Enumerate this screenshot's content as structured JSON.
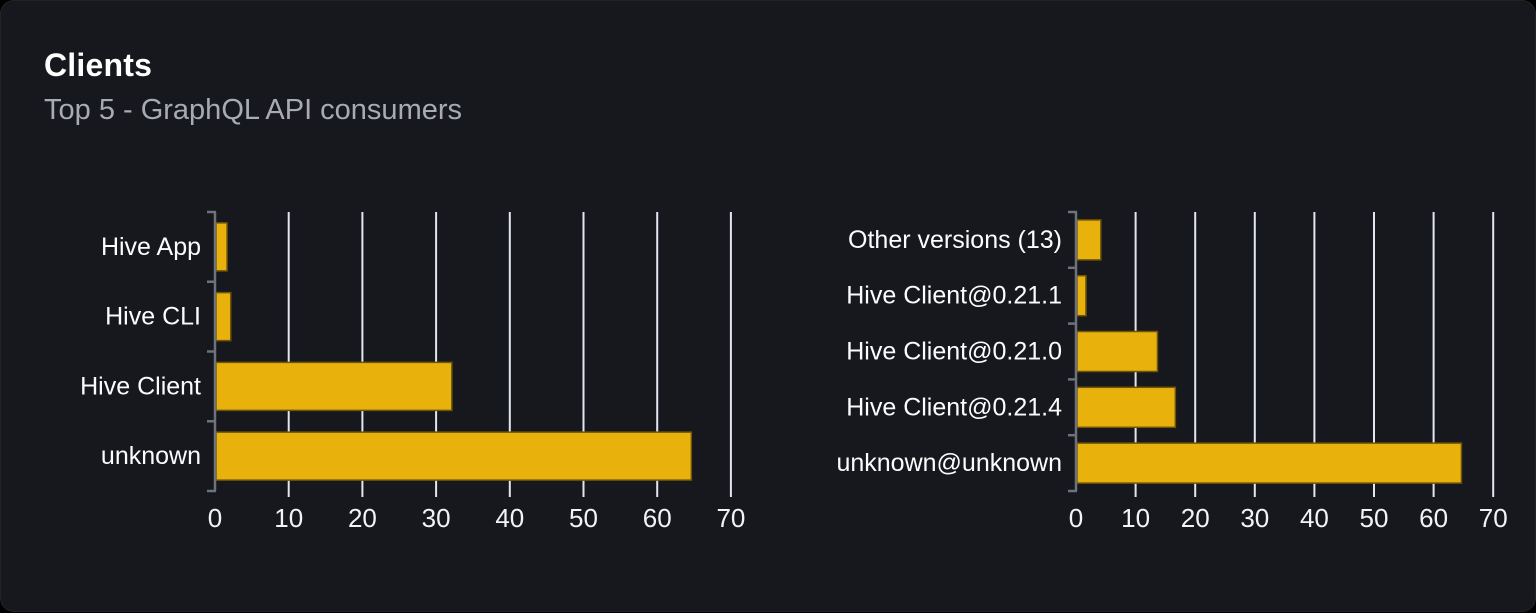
{
  "card": {
    "title": "Clients",
    "subtitle": "Top 5 - GraphQL API consumers"
  },
  "colors": {
    "bar_fill": "#e9b10b",
    "bar_stroke": "#6e550a",
    "gridline": "#e2e6f0",
    "axis": "#6d737d",
    "label_text": "#fbfcfd",
    "tick_text": "#f2f3f5",
    "card_background": "#16181d",
    "page_background": "#000000",
    "title_text": "#ffffff",
    "subtitle_text": "#a6abb4"
  },
  "chart_data": [
    {
      "type": "bar",
      "orientation": "horizontal",
      "title": "",
      "categories": [
        "Hive App",
        "Hive CLI",
        "Hive Client",
        "unknown"
      ],
      "values": [
        1.5,
        2,
        32,
        64.5
      ],
      "xticks": [
        "0",
        "10",
        "20",
        "30",
        "40",
        "50",
        "60",
        "70"
      ],
      "xlim": [
        0,
        70
      ],
      "grid": "vertical",
      "legend": "none"
    },
    {
      "type": "bar",
      "orientation": "horizontal",
      "title": "",
      "categories": [
        "Other versions (13)",
        "Hive Client@0.21.1",
        "Hive Client@0.21.0",
        "Hive Client@0.21.4",
        "unknown@unknown"
      ],
      "values": [
        4,
        1.5,
        13.5,
        16.5,
        64.5
      ],
      "xticks": [
        "0",
        "10",
        "20",
        "30",
        "40",
        "50",
        "60",
        "70"
      ],
      "xlim": [
        0,
        70
      ],
      "grid": "vertical",
      "legend": "none"
    }
  ]
}
